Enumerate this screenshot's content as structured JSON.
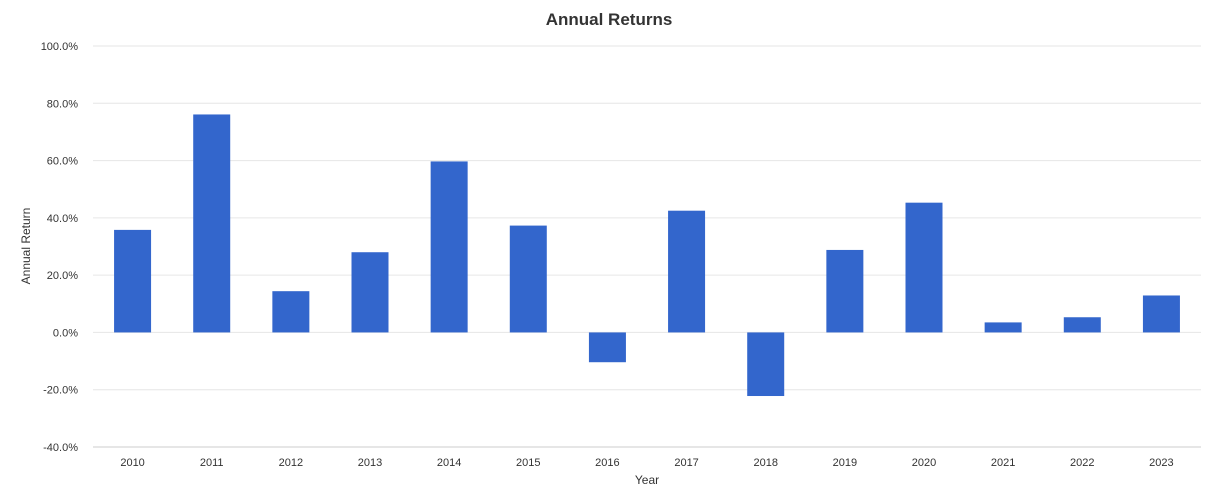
{
  "chart_data": {
    "type": "bar",
    "title": "Annual Returns",
    "xlabel": "Year",
    "ylabel": "Annual Return",
    "categories": [
      "2010",
      "2011",
      "2012",
      "2013",
      "2014",
      "2015",
      "2016",
      "2017",
      "2018",
      "2019",
      "2020",
      "2021",
      "2022",
      "2023"
    ],
    "values": [
      35.8,
      76.1,
      14.4,
      28.0,
      59.7,
      37.3,
      -10.4,
      42.5,
      -22.2,
      28.8,
      45.3,
      3.5,
      5.3,
      12.9
    ],
    "ylim": [
      -40,
      100
    ],
    "yticks": [
      "100.0%",
      "80.0%",
      "60.0%",
      "40.0%",
      "20.0%",
      "0.0%",
      "-20.0%",
      "-40.0%"
    ],
    "ytick_values": [
      100,
      80,
      60,
      40,
      20,
      0,
      -20,
      -40
    ],
    "grid": true,
    "legend": "none",
    "colors": {
      "bar": "#3366cc",
      "grid": "#e6e6e6",
      "axis": "#cccccc",
      "text": "#333333"
    }
  }
}
